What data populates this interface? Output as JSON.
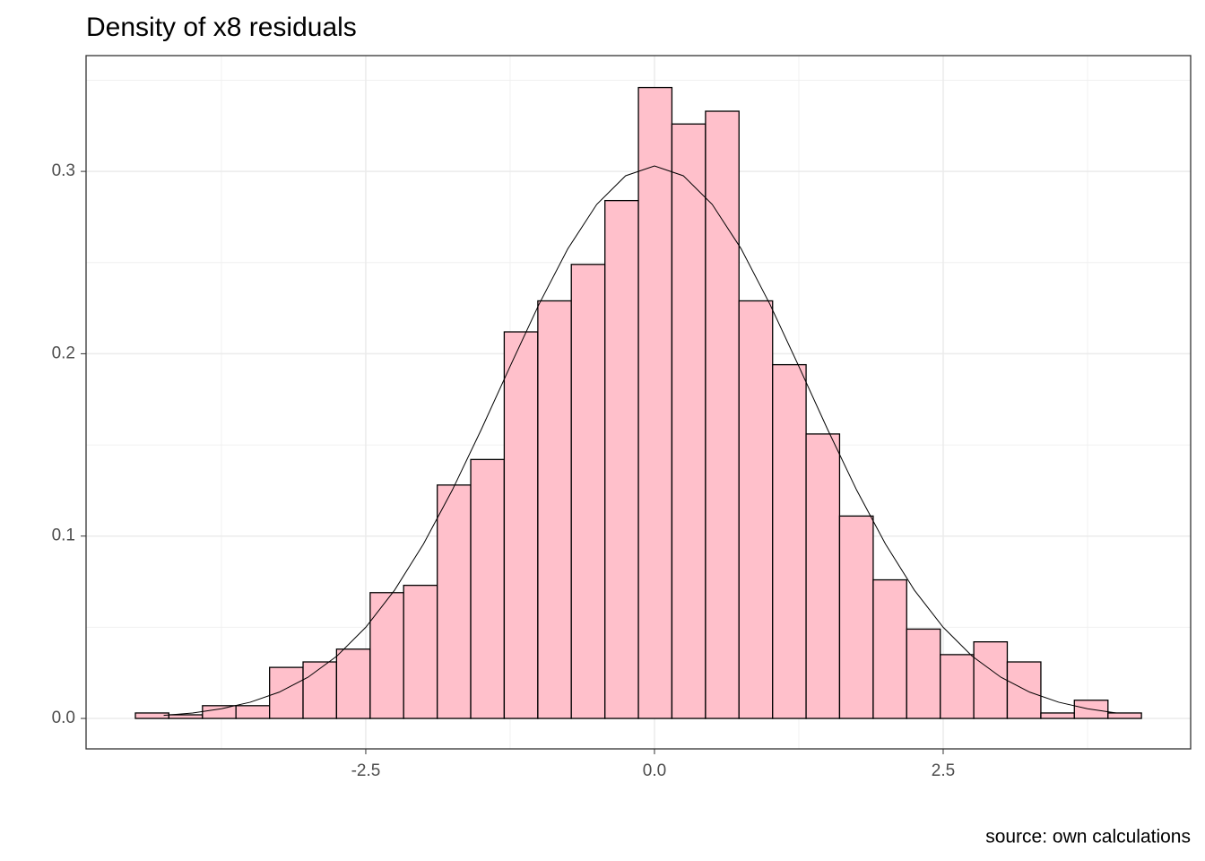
{
  "chart_data": {
    "type": "histogram",
    "title": "Density of x8 residuals",
    "caption": "source: own calculations",
    "bins": [
      -4.495,
      -4.205,
      -3.914,
      -3.624,
      -3.333,
      -3.043,
      -2.753,
      -2.462,
      -2.172,
      -1.881,
      -1.591,
      -1.301,
      -1.01,
      -0.72,
      -0.429,
      -0.139,
      0.151,
      0.442,
      0.732,
      1.023,
      1.313,
      1.603,
      1.894,
      2.184,
      2.475,
      2.765,
      3.055,
      3.346,
      3.636,
      3.927,
      4.217
    ],
    "values": [
      0.003,
      0.002,
      0.007,
      0.007,
      0.028,
      0.031,
      0.038,
      0.069,
      0.073,
      0.128,
      0.142,
      0.212,
      0.229,
      0.249,
      0.284,
      0.346,
      0.326,
      0.333,
      0.229,
      0.194,
      0.156,
      0.111,
      0.076,
      0.049,
      0.035,
      0.042,
      0.031,
      0.003,
      0.01,
      0.003
    ],
    "color": "#ffc0cb",
    "edgecolor": "#000000",
    "density_curve": {
      "color": "#000000",
      "x": [
        -4.25,
        -4.0,
        -3.75,
        -3.5,
        -3.25,
        -3.0,
        -2.75,
        -2.5,
        -2.25,
        -2.0,
        -1.75,
        -1.5,
        -1.25,
        -1.0,
        -0.75,
        -0.5,
        -0.25,
        0,
        0.25,
        0.5,
        0.75,
        1.0,
        1.25,
        1.5,
        1.75,
        2.0,
        2.25,
        2.5,
        2.75,
        3.0,
        3.25,
        3.5,
        3.75,
        4.0
      ],
      "y": [
        0.0017,
        0.003,
        0.0053,
        0.0089,
        0.0144,
        0.0226,
        0.0342,
        0.05,
        0.0704,
        0.0957,
        0.1253,
        0.1584,
        0.1931,
        0.2271,
        0.2576,
        0.2819,
        0.2976,
        0.303,
        0.2976,
        0.2819,
        0.2576,
        0.2271,
        0.1931,
        0.1584,
        0.1253,
        0.0957,
        0.0704,
        0.05,
        0.0342,
        0.0226,
        0.0144,
        0.0089,
        0.0053,
        0.003
      ]
    },
    "xlim": [
      -4.922,
      4.643
    ],
    "ylim": [
      -0.0167,
      0.3635
    ],
    "xticks": [
      -2.5,
      {
        "value": 0,
        "label": "0.0"
      },
      2.5
    ],
    "yticks": [
      {
        "value": 0,
        "label": "0.0"
      },
      0.1,
      0.2,
      0.3
    ],
    "x_minor_ticks": [
      -3.75,
      -1.25,
      1.25,
      3.75
    ],
    "y_minor_ticks": [
      0.05,
      0.15,
      0.25,
      0.35
    ],
    "grid": true
  }
}
